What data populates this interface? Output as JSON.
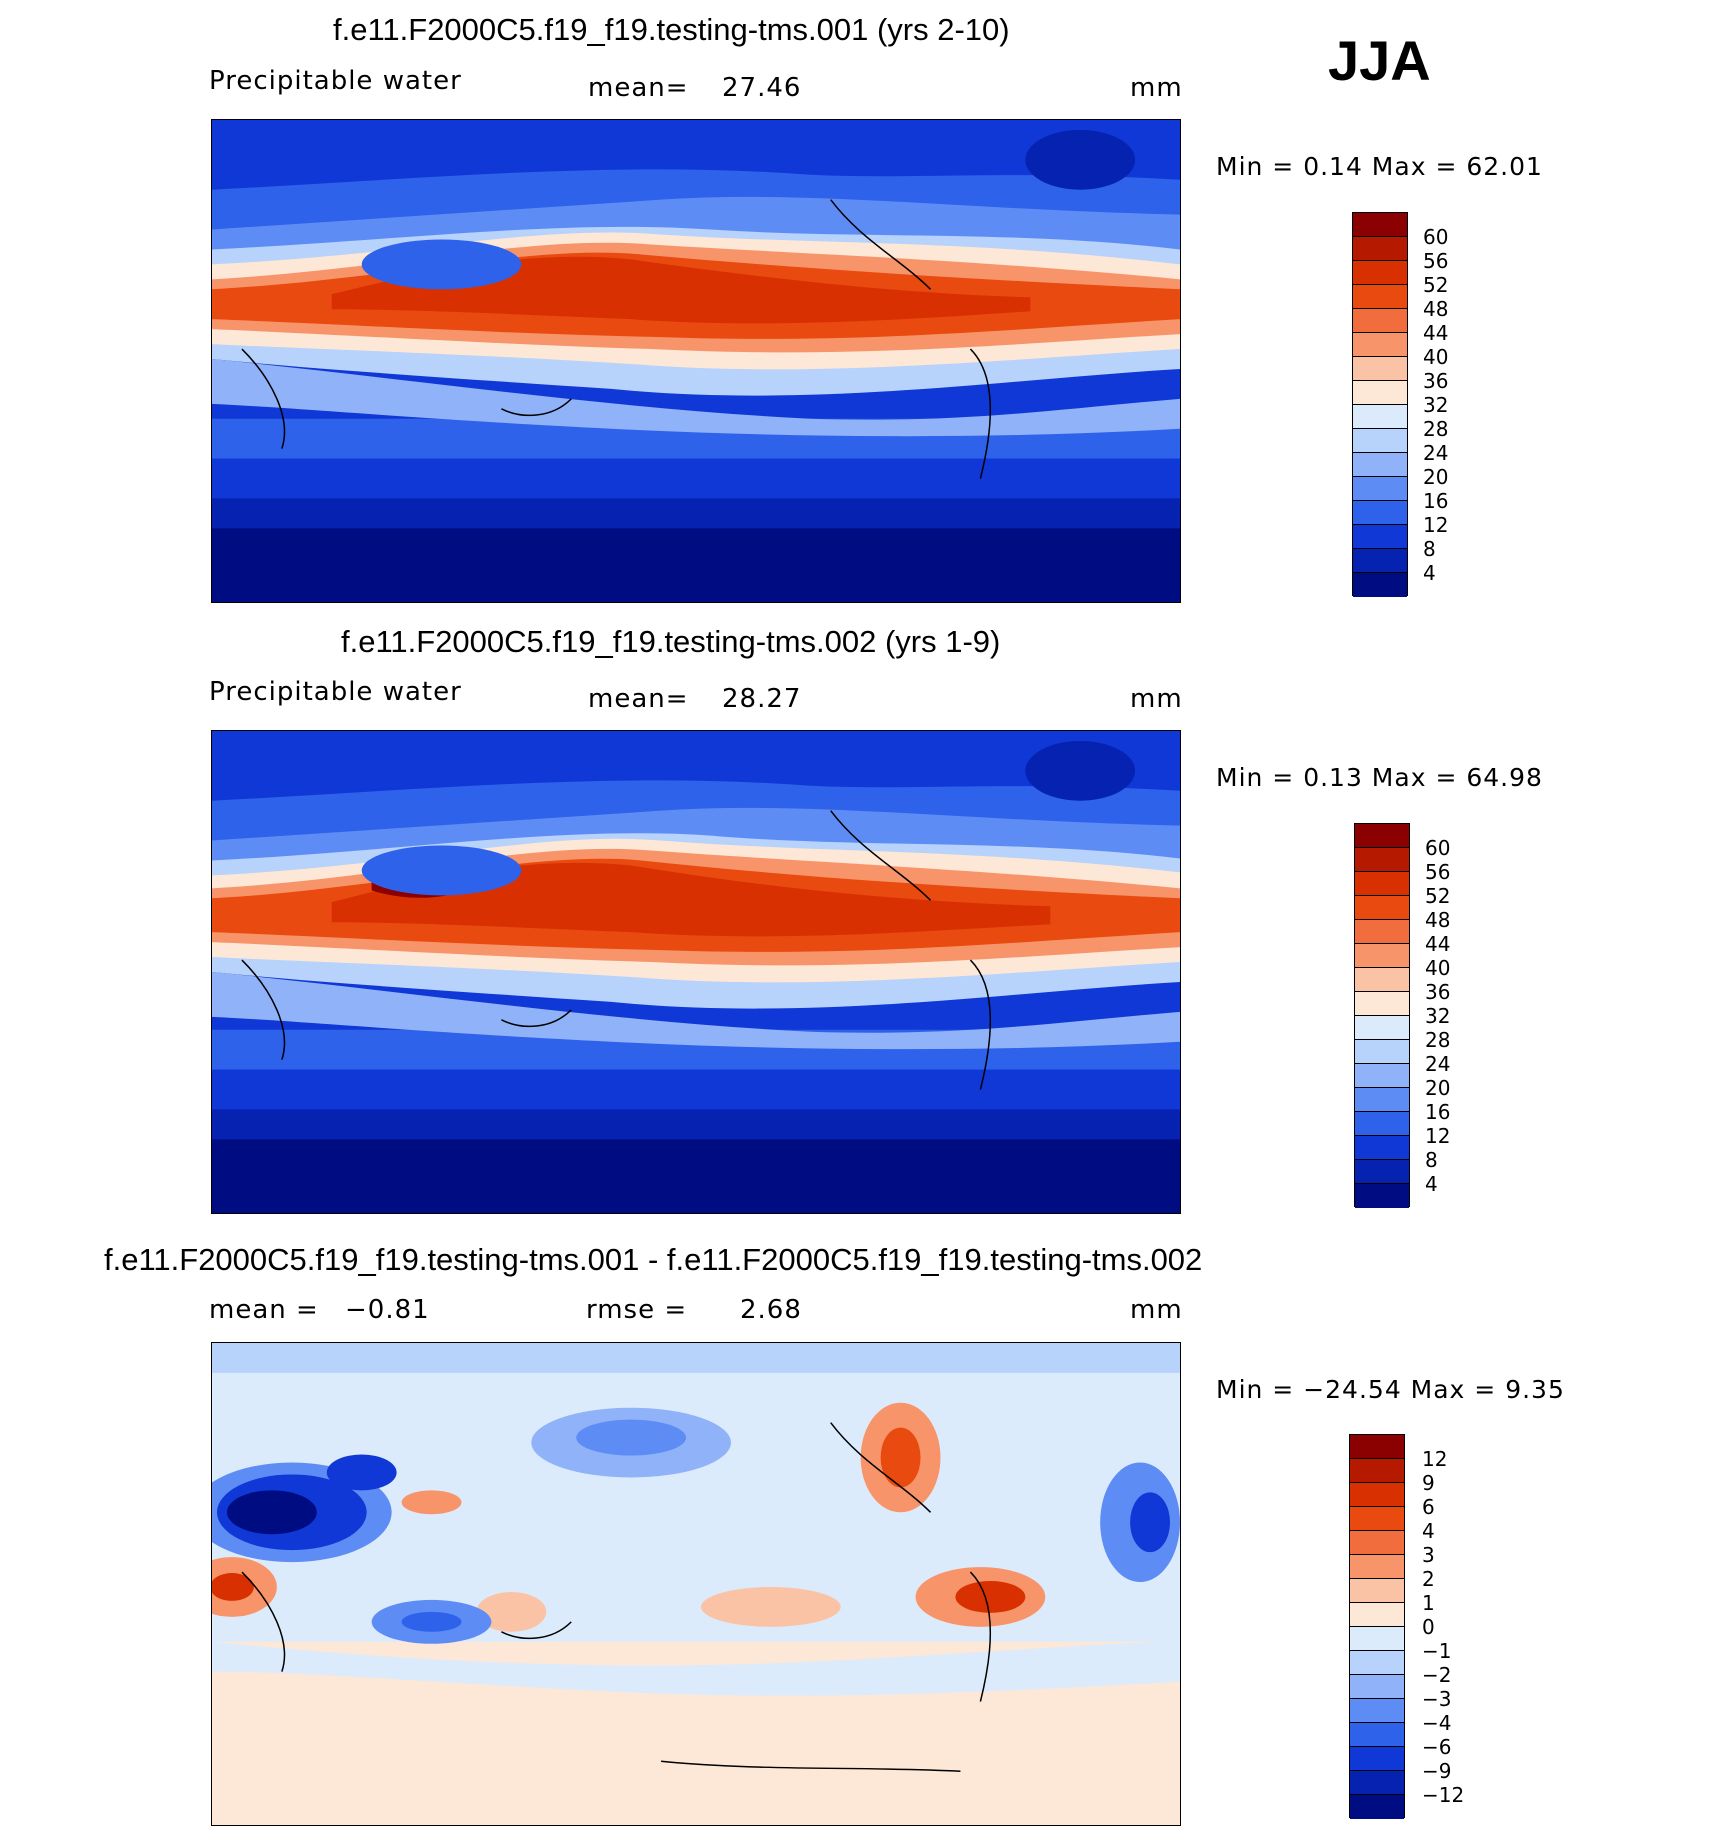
{
  "season": "JJA",
  "panels": [
    {
      "title": "f.e11.F2000C5.f19_f19.testing-tms.001 (yrs 2-10)",
      "variable": "Precipitable water",
      "stat_label": "mean=",
      "stat_value": "27.46",
      "units": "mm",
      "minmax": "Min =    0.14 Max =   62.01",
      "colorbar_levels": [
        "60",
        "56",
        "52",
        "48",
        "44",
        "40",
        "36",
        "32",
        "28",
        "24",
        "20",
        "16",
        "12",
        "8",
        "4"
      ]
    },
    {
      "title": "f.e11.F2000C5.f19_f19.testing-tms.002 (yrs 1-9)",
      "variable": "Precipitable water",
      "stat_label": "mean=",
      "stat_value": "28.27",
      "units": "mm",
      "minmax": "Min =    0.13 Max =   64.98",
      "colorbar_levels": [
        "60",
        "56",
        "52",
        "48",
        "44",
        "40",
        "36",
        "32",
        "28",
        "24",
        "20",
        "16",
        "12",
        "8",
        "4"
      ]
    },
    {
      "title": "f.e11.F2000C5.f19_f19.testing-tms.001 - f.e11.F2000C5.f19_f19.testing-tms.002",
      "stat1_label": "mean =",
      "stat1_value": "−0.81",
      "stat2_label": "rmse =",
      "stat2_value": "2.68",
      "units": "mm",
      "minmax": "Min = −24.54 Max =    9.35",
      "colorbar_levels": [
        "12",
        "9",
        "6",
        "4",
        "3",
        "2",
        "1",
        "0",
        "−1",
        "−2",
        "−3",
        "−4",
        "−6",
        "−9",
        "−12"
      ]
    }
  ],
  "colors": {
    "field_scale": [
      "#8b0000",
      "#b51a00",
      "#d83000",
      "#e84a10",
      "#f26d3d",
      "#f7946a",
      "#fbc3a5",
      "#fde7d6",
      "#dcebfb",
      "#b7d2fb",
      "#8fb2f9",
      "#5e8cf5",
      "#2f62ea",
      "#1038d6",
      "#0522b0",
      "#000c82"
    ],
    "diff_scale": [
      "#8b0000",
      "#b51a00",
      "#d83000",
      "#e84a10",
      "#f26d3d",
      "#f7946a",
      "#fbc3a5",
      "#fde7d6",
      "#dcebfb",
      "#b7d2fb",
      "#8fb2f9",
      "#5e8cf5",
      "#2f62ea",
      "#1038d6",
      "#0522b0",
      "#000c82"
    ]
  }
}
